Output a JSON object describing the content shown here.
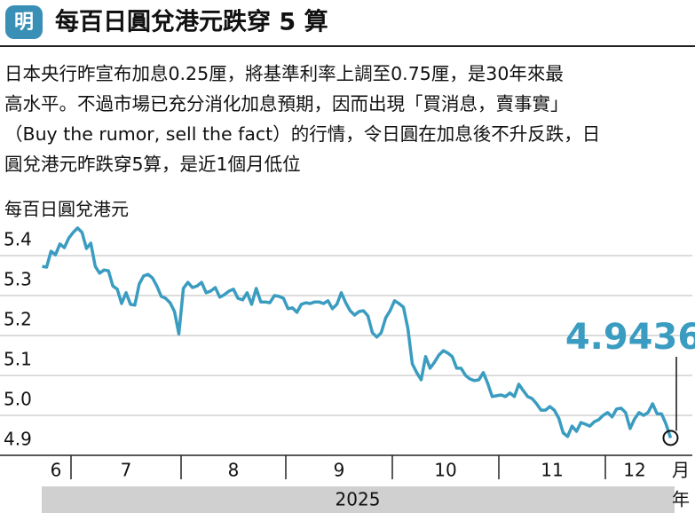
{
  "logo": "明",
  "description": [
    "日本央行昨宣布加息0.25厘，將基準利率上調至0.75厘，是30年來最",
    "高水平。不過市場已充分消化加息預期，因而出現「買消息，賣事實」",
    "（Buy the rumor, sell the fact）的行情，令日圓在加息後不升反跌，日",
    "圓兌港元昨跌穿5算，是近1個月低位"
  ],
  "chart_data": {
    "type": "line",
    "title": "每百日圓兌港元跌穿 5 算",
    "y_label": "每百日圓兌港元",
    "categories": [
      "6",
      "7",
      "8",
      "9",
      "10",
      "11",
      "12"
    ],
    "month_unit": "月",
    "year": "2025",
    "year_unit": "年",
    "color": "#3a9cc0",
    "values": [
      [
        5.373,
        5.371,
        5.411,
        5.402,
        5.429,
        5.42,
        5.444
      ],
      [
        5.458,
        5.469,
        5.458,
        5.418,
        5.431,
        5.373,
        5.356,
        5.364,
        5.362,
        5.324,
        5.316,
        5.28,
        5.307,
        5.278,
        5.276,
        5.329,
        5.349,
        5.353,
        5.344,
        5.324,
        5.298,
        5.293,
        5.282,
        5.26,
        5.204
      ],
      [
        5.318,
        5.333,
        5.32,
        5.324,
        5.333,
        5.307,
        5.311,
        5.32,
        5.296,
        5.302,
        5.311,
        5.316,
        5.293,
        5.289,
        5.307,
        5.278,
        5.318,
        5.284,
        5.284,
        5.282,
        5.3,
        5.298,
        5.293
      ],
      [
        5.267,
        5.269,
        5.258,
        5.278,
        5.282,
        5.28,
        5.284,
        5.284,
        5.28,
        5.287,
        5.267,
        5.278,
        5.307,
        5.282,
        5.262,
        5.251,
        5.26,
        5.262,
        5.249,
        5.207,
        5.196,
        5.207,
        5.244,
        5.262
      ],
      [
        5.287,
        5.28,
        5.271,
        5.218,
        5.129,
        5.107,
        5.089,
        5.147,
        5.118,
        5.133,
        5.151,
        5.162,
        5.156,
        5.147,
        5.118,
        5.118,
        5.1,
        5.091,
        5.087,
        5.089,
        5.107,
        5.08,
        5.047,
        5.049
      ],
      [
        5.051,
        5.047,
        5.056,
        5.047,
        5.078,
        5.062,
        5.047,
        5.042,
        5.029,
        5.013,
        5.013,
        5.022,
        5.013,
        4.993,
        4.956,
        4.947,
        4.973,
        4.96,
        4.982,
        4.978,
        4.973,
        4.984,
        4.989,
        5.0
      ],
      [
        5.007,
        4.996,
        5.016,
        5.018,
        5.007,
        4.967,
        4.991,
        5.007,
        5.0,
        5.007,
        5.029,
        5.004,
        5.004,
        4.978,
        4.9436
      ]
    ],
    "annotation": "4.9436",
    "ylim": [
      4.9,
      5.4844
    ],
    "yticks": [
      4.9,
      {
        "value": 5,
        "label": "5.0"
      },
      5.1,
      5.2,
      5.3,
      5.4
    ],
    "grid": true
  }
}
